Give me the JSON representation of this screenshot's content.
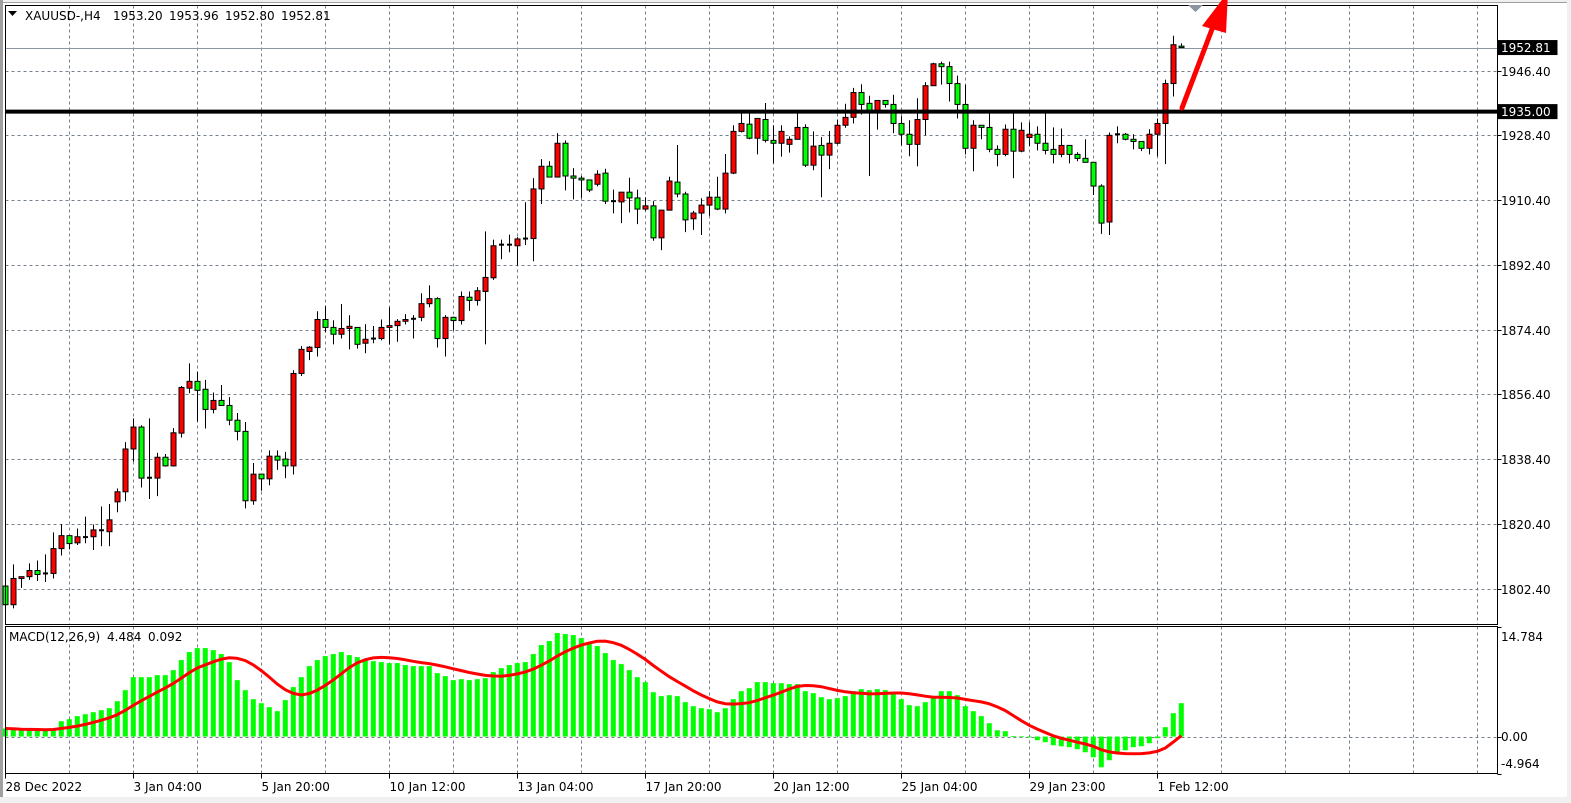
{
  "header": {
    "symbol_timeframe": "XAUUSD-,H4",
    "open": "1953.20",
    "high": "1953.96",
    "low": "1952.80",
    "close": "1952.81"
  },
  "macd_label": {
    "name": "MACD(12,26,9)",
    "main": "4.484",
    "signal": "0.092"
  },
  "colors": {
    "bull_candle": "#ff0000",
    "bear_candle": "#00ff00",
    "candle_outline": "#000000",
    "grid": "#75808c",
    "macd_histogram": "#00ff00",
    "macd_signal": "#ff0000",
    "horizontal_line": "#000000",
    "bid_line": "#8c97a3",
    "arrow": "#ff0000",
    "shift_marker": "#8a95a0"
  },
  "icons": {
    "header_menu": "triangle-down-icon",
    "shift_marker": "triangle-down-icon",
    "trend_arrow": "arrow-up-right-icon"
  },
  "chart_data": [
    {
      "type": "candlestick",
      "symbol": "XAUUSD-",
      "timeframe": "H4",
      "ohlc_columns": [
        "open",
        "high",
        "low",
        "close"
      ],
      "candles": [
        [
          1803.1,
          1809.4,
          1797.5,
          1797.9
        ],
        [
          1797.9,
          1809.1,
          1796.9,
          1805.2
        ],
        [
          1805.2,
          1805.7,
          1802.6,
          1805.7
        ],
        [
          1805.7,
          1809.4,
          1804.8,
          1807.4
        ],
        [
          1807.4,
          1810.2,
          1804.5,
          1806.3
        ],
        [
          1806.3,
          1811.9,
          1804.2,
          1806.6
        ],
        [
          1806.6,
          1818.0,
          1805.2,
          1813.5
        ],
        [
          1813.5,
          1820.3,
          1811.6,
          1817.1
        ],
        [
          1817.1,
          1817.1,
          1813.3,
          1814.9
        ],
        [
          1815.1,
          1819.1,
          1814.5,
          1816.8
        ],
        [
          1816.5,
          1822.4,
          1815.0,
          1816.7
        ],
        [
          1816.8,
          1820.2,
          1813.1,
          1818.7
        ],
        [
          1818.5,
          1825.2,
          1814.2,
          1818.6
        ],
        [
          1818.2,
          1825.9,
          1814.2,
          1821.5
        ],
        [
          1826.5,
          1830.2,
          1823.6,
          1829.3
        ],
        [
          1829.3,
          1843.1,
          1826.7,
          1841.2
        ],
        [
          1841.2,
          1849.7,
          1837.7,
          1847.3
        ],
        [
          1847.3,
          1847.8,
          1830.5,
          1833.1
        ],
        [
          1833.0,
          1849.7,
          1827.3,
          1833.2
        ],
        [
          1833.1,
          1840.1,
          1828.1,
          1838.9
        ],
        [
          1838.9,
          1839.8,
          1836.3,
          1836.5
        ],
        [
          1836.5,
          1847.0,
          1836.3,
          1845.7
        ],
        [
          1845.6,
          1858.7,
          1844.4,
          1858.3
        ],
        [
          1858.1,
          1865.0,
          1856.7,
          1860.0
        ],
        [
          1860.0,
          1862.7,
          1848.8,
          1857.5
        ],
        [
          1857.8,
          1860.4,
          1846.9,
          1852.2
        ],
        [
          1852.2,
          1856.9,
          1851.1,
          1854.7
        ],
        [
          1854.7,
          1859.0,
          1853.3,
          1853.3
        ],
        [
          1853.3,
          1855.6,
          1847.8,
          1849.2
        ],
        [
          1849.2,
          1851.2,
          1843.6,
          1846.1
        ],
        [
          1846.1,
          1848.7,
          1824.7,
          1826.8
        ],
        [
          1826.8,
          1837.3,
          1825.7,
          1834.2
        ],
        [
          1834.2,
          1834.2,
          1829.6,
          1832.9
        ],
        [
          1832.9,
          1840.8,
          1831.1,
          1839.2
        ],
        [
          1839.2,
          1840.8,
          1835.4,
          1838.1
        ],
        [
          1838.4,
          1840.4,
          1833.1,
          1836.5
        ],
        [
          1836.5,
          1863.1,
          1834.1,
          1862.2
        ],
        [
          1862.2,
          1869.8,
          1861.5,
          1868.9
        ],
        [
          1868.3,
          1869.8,
          1865.9,
          1869.5
        ],
        [
          1869.4,
          1879.5,
          1866.9,
          1877.2
        ],
        [
          1877.2,
          1881.0,
          1873.6,
          1875.0
        ],
        [
          1875.0,
          1877.0,
          1870.3,
          1873.1
        ],
        [
          1873.1,
          1881.5,
          1871.9,
          1874.7
        ],
        [
          1874.7,
          1878.4,
          1868.9,
          1875.3
        ],
        [
          1875.0,
          1875.0,
          1869.1,
          1870.3
        ],
        [
          1870.6,
          1875.9,
          1867.8,
          1871.7
        ],
        [
          1871.8,
          1875.4,
          1870.6,
          1871.9
        ],
        [
          1871.9,
          1877.2,
          1871.4,
          1875.0
        ],
        [
          1875.0,
          1880.6,
          1870.2,
          1875.5
        ],
        [
          1875.5,
          1877.3,
          1871.0,
          1876.7
        ],
        [
          1876.7,
          1878.7,
          1875.8,
          1877.2
        ],
        [
          1877.2,
          1878.4,
          1871.9,
          1877.4
        ],
        [
          1877.8,
          1884.5,
          1876.7,
          1881.6
        ],
        [
          1881.6,
          1886.7,
          1880.6,
          1883.0
        ],
        [
          1883.0,
          1883.4,
          1869.4,
          1871.9
        ],
        [
          1871.9,
          1878.4,
          1866.9,
          1877.8
        ],
        [
          1877.8,
          1878.0,
          1874.2,
          1876.9
        ],
        [
          1876.9,
          1885.0,
          1875.8,
          1883.6
        ],
        [
          1883.4,
          1885.0,
          1879.6,
          1882.5
        ],
        [
          1882.5,
          1886.2,
          1881.1,
          1885.2
        ],
        [
          1885.0,
          1901.7,
          1870.3,
          1888.9
        ],
        [
          1888.8,
          1899.4,
          1888.2,
          1897.7
        ],
        [
          1897.7,
          1899.4,
          1894.0,
          1898.0
        ],
        [
          1897.8,
          1900.8,
          1895.9,
          1898.0
        ],
        [
          1897.7,
          1900.1,
          1892.2,
          1899.6
        ],
        [
          1899.6,
          1909.8,
          1897.9,
          1899.7
        ],
        [
          1899.7,
          1916.5,
          1893.4,
          1913.5
        ],
        [
          1913.5,
          1921.8,
          1909.3,
          1919.8
        ],
        [
          1919.8,
          1921.2,
          1916.7,
          1916.8
        ],
        [
          1916.8,
          1929.0,
          1916.7,
          1926.2
        ],
        [
          1926.2,
          1927.0,
          1913.1,
          1917.1
        ],
        [
          1917.1,
          1919.3,
          1910.6,
          1916.5
        ],
        [
          1916.5,
          1917.1,
          1911.0,
          1916.0
        ],
        [
          1916.0,
          1916.0,
          1912.6,
          1913.2
        ],
        [
          1914.8,
          1918.7,
          1914.2,
          1917.6
        ],
        [
          1917.9,
          1919.1,
          1909.3,
          1910.1
        ],
        [
          1910.1,
          1913.3,
          1906.7,
          1909.9
        ],
        [
          1909.9,
          1912.6,
          1904.0,
          1912.6
        ],
        [
          1912.6,
          1916.6,
          1907.0,
          1911.0
        ],
        [
          1911.0,
          1913.3,
          1903.7,
          1907.9
        ],
        [
          1907.9,
          1911.2,
          1907.4,
          1908.8
        ],
        [
          1908.8,
          1910.1,
          1899.1,
          1899.9
        ],
        [
          1899.9,
          1907.6,
          1896.5,
          1907.6
        ],
        [
          1907.6,
          1916.9,
          1907.5,
          1915.7
        ],
        [
          1915.4,
          1925.7,
          1911.2,
          1912.1
        ],
        [
          1912.1,
          1912.7,
          1901.5,
          1904.9
        ],
        [
          1905.2,
          1907.4,
          1902.1,
          1906.8
        ],
        [
          1906.8,
          1910.9,
          1900.7,
          1909.0
        ],
        [
          1909.0,
          1912.9,
          1906.0,
          1911.2
        ],
        [
          1911.2,
          1916.9,
          1907.6,
          1907.9
        ],
        [
          1907.9,
          1923.2,
          1906.7,
          1917.9
        ],
        [
          1917.9,
          1931.2,
          1917.6,
          1929.5
        ],
        [
          1929.5,
          1934.8,
          1929.2,
          1931.7
        ],
        [
          1931.5,
          1934.8,
          1927.3,
          1927.6
        ],
        [
          1927.6,
          1933.1,
          1923.1,
          1933.1
        ],
        [
          1932.8,
          1937.4,
          1926.4,
          1927.0
        ],
        [
          1927.0,
          1931.2,
          1920.6,
          1926.2
        ],
        [
          1926.2,
          1931.2,
          1922.5,
          1929.5
        ],
        [
          1925.9,
          1928.1,
          1923.6,
          1927.3
        ],
        [
          1927.3,
          1934.8,
          1927.2,
          1930.6
        ],
        [
          1930.6,
          1931.5,
          1919.6,
          1920.1
        ],
        [
          1920.1,
          1929.5,
          1918.7,
          1925.4
        ],
        [
          1925.6,
          1927.9,
          1911.2,
          1922.9
        ],
        [
          1922.9,
          1929.6,
          1919.0,
          1926.2
        ],
        [
          1926.2,
          1932.8,
          1925.9,
          1931.2
        ],
        [
          1931.2,
          1937.2,
          1930.5,
          1933.4
        ],
        [
          1933.4,
          1941.6,
          1931.7,
          1940.3
        ],
        [
          1940.3,
          1942.6,
          1934.2,
          1937.0
        ],
        [
          1937.3,
          1939.4,
          1917.1,
          1935.2
        ],
        [
          1935.2,
          1938.1,
          1930.0,
          1938.1
        ],
        [
          1938.1,
          1938.1,
          1936.1,
          1937.0
        ],
        [
          1937.0,
          1939.7,
          1929.0,
          1931.7
        ],
        [
          1931.7,
          1933.7,
          1925.6,
          1928.7
        ],
        [
          1928.7,
          1932.6,
          1922.6,
          1925.9
        ],
        [
          1925.9,
          1938.7,
          1919.8,
          1932.8
        ],
        [
          1932.8,
          1943.2,
          1928.4,
          1942.2
        ],
        [
          1942.2,
          1948.6,
          1942.2,
          1948.3
        ],
        [
          1948.3,
          1948.9,
          1942.5,
          1947.5
        ],
        [
          1947.5,
          1948.9,
          1937.8,
          1942.8
        ],
        [
          1942.8,
          1945.0,
          1933.1,
          1937.0
        ],
        [
          1937.0,
          1942.5,
          1923.1,
          1924.8
        ],
        [
          1924.8,
          1932.6,
          1918.4,
          1931.2
        ],
        [
          1931.2,
          1931.2,
          1927.3,
          1930.6
        ],
        [
          1930.6,
          1934.5,
          1923.7,
          1924.5
        ],
        [
          1924.5,
          1925.6,
          1919.8,
          1923.1
        ],
        [
          1923.1,
          1931.4,
          1922.6,
          1930.1
        ],
        [
          1930.1,
          1934.5,
          1916.5,
          1924.0
        ],
        [
          1924.0,
          1932.0,
          1923.7,
          1929.8
        ],
        [
          1927.8,
          1932.0,
          1925.4,
          1928.7
        ],
        [
          1928.7,
          1930.9,
          1924.2,
          1926.2
        ],
        [
          1926.2,
          1934.5,
          1923.1,
          1924.2
        ],
        [
          1924.5,
          1930.6,
          1920.6,
          1923.1
        ],
        [
          1923.1,
          1930.3,
          1922.3,
          1925.6
        ],
        [
          1925.6,
          1925.6,
          1920.6,
          1923.1
        ],
        [
          1923.1,
          1923.7,
          1921.2,
          1922.0
        ],
        [
          1922.0,
          1927.3,
          1920.9,
          1920.9
        ],
        [
          1920.9,
          1920.9,
          1911.8,
          1914.3
        ],
        [
          1914.3,
          1914.8,
          1901.0,
          1904.0
        ],
        [
          1904.3,
          1929.2,
          1900.7,
          1928.4
        ],
        [
          1928.4,
          1930.9,
          1926.2,
          1928.7
        ],
        [
          1928.7,
          1929.0,
          1927.0,
          1927.3
        ],
        [
          1927.3,
          1928.7,
          1924.5,
          1926.7
        ],
        [
          1926.7,
          1926.7,
          1924.0,
          1924.8
        ],
        [
          1924.8,
          1930.1,
          1923.1,
          1928.7
        ],
        [
          1928.7,
          1933.1,
          1922.6,
          1931.7
        ],
        [
          1931.7,
          1943.9,
          1920.4,
          1942.8
        ],
        [
          1942.8,
          1956.1,
          1939.2,
          1953.6
        ],
        [
          1953.2,
          1953.96,
          1952.8,
          1952.81
        ]
      ],
      "ylim": [
        1792.4,
        1964.5
      ],
      "y_ticks": [
        "1946.40",
        "1928.40",
        "1910.40",
        "1892.40",
        "1874.40",
        "1856.40",
        "1838.40",
        "1820.40",
        "1802.40"
      ],
      "x_tick_labels": [
        {
          "candle": 1,
          "label": "28 Dec 2022"
        },
        {
          "candle": 17,
          "label": "3 Jan 04:00"
        },
        {
          "candle": 33,
          "label": "5 Jan 20:00"
        },
        {
          "candle": 49,
          "label": "10 Jan 12:00"
        },
        {
          "candle": 65,
          "label": "13 Jan 04:00"
        },
        {
          "candle": 81,
          "label": "17 Jan 20:00"
        },
        {
          "candle": 97,
          "label": "20 Jan 12:00"
        },
        {
          "candle": 113,
          "label": "25 Jan 04:00"
        },
        {
          "candle": 129,
          "label": "29 Jan 23:00"
        },
        {
          "candle": 145,
          "label": "1 Feb 12:00"
        }
      ],
      "grid": true,
      "bid_line": {
        "value": 1952.81,
        "label": "1952.81"
      },
      "horizontal_line": {
        "value": 1935.0,
        "label": "1935.00"
      },
      "annotation": {
        "type": "arrow",
        "direction": "up",
        "from_candle": 148,
        "from_price": 1935.0
      }
    },
    {
      "type": "bar",
      "name": "MACD(12,26,9)",
      "histogram": [
        1.08,
        0.99,
        0.85,
        0.94,
        0.85,
        0.85,
        1.08,
        2.06,
        2.33,
        2.74,
        3.0,
        3.27,
        3.54,
        3.81,
        4.75,
        6.23,
        7.98,
        7.98,
        7.98,
        8.25,
        8.25,
        8.92,
        10.27,
        11.35,
        11.88,
        11.88,
        11.61,
        11.08,
        10.0,
        7.58,
        6.23,
        5.02,
        4.48,
        3.95,
        3.41,
        4.89,
        6.64,
        7.98,
        9.46,
        10.27,
        10.81,
        11.08,
        11.35,
        10.94,
        10.67,
        10.4,
        10.13,
        10.0,
        9.87,
        9.87,
        9.6,
        9.46,
        9.46,
        9.46,
        8.52,
        8.12,
        7.58,
        7.71,
        7.58,
        7.71,
        7.85,
        8.65,
        9.19,
        9.6,
        9.87,
        10.0,
        11.08,
        12.29,
        12.83,
        13.9,
        13.77,
        13.63,
        13.23,
        12.42,
        12.15,
        11.21,
        10.27,
        9.73,
        8.92,
        7.98,
        7.31,
        5.96,
        5.43,
        5.56,
        5.43,
        4.62,
        4.08,
        3.81,
        3.68,
        3.27,
        3.81,
        5.02,
        6.1,
        6.5,
        7.31,
        7.31,
        7.17,
        7.17,
        7.04,
        7.04,
        6.1,
        5.83,
        5.29,
        5.02,
        5.16,
        5.43,
        6.1,
        6.37,
        6.23,
        6.37,
        6.23,
        5.7,
        5.02,
        4.22,
        4.08,
        4.62,
        5.16,
        6.1,
        6.1,
        5.56,
        4.08,
        3.41,
        2.74,
        1.79,
        0.85,
        0.72,
        0.05,
        0.02,
        -0.05,
        -0.49,
        -0.76,
        -1.17,
        -1.3,
        -1.43,
        -1.7,
        -2.11,
        -2.78,
        -4.13,
        -3.18,
        -2.11,
        -1.84,
        -1.43,
        -1.3,
        -0.9,
        -0.22,
        1.26,
        3.14,
        4.484
      ],
      "signal": {
        "method": "SMA",
        "period": 9,
        "last": 0.092
      },
      "ylim": [
        -4.964,
        14.784
      ],
      "y_ticks": [
        "14.784",
        "0.00",
        "-4.964"
      ],
      "grid": true
    }
  ]
}
